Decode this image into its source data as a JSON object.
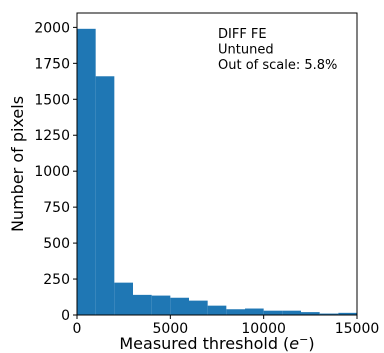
{
  "chart_data": {
    "type": "bar",
    "xlabel": "Measured threshold (",
    "xlabel_math": "e",
    "xlabel_sup": "−",
    "xlabel_close": ")",
    "ylabel": "Number of pixels",
    "xlim": [
      0,
      15000
    ],
    "ylim": [
      0,
      2100
    ],
    "x_ticks": [
      0,
      5000,
      10000,
      15000
    ],
    "x_tick_labels": [
      "0",
      "5000",
      "10000",
      "15000"
    ],
    "y_ticks": [
      0,
      250,
      500,
      750,
      1000,
      1250,
      1500,
      1750,
      2000
    ],
    "y_tick_labels": [
      "0",
      "250",
      "500",
      "750",
      "1000",
      "1250",
      "1500",
      "1750",
      "2000"
    ],
    "bin_edges": [
      0,
      1000,
      2000,
      3000,
      4000,
      5000,
      6000,
      7000,
      8000,
      9000,
      10000,
      11000,
      12000,
      13000,
      14000,
      15000
    ],
    "values": [
      1990,
      1660,
      225,
      140,
      135,
      120,
      100,
      65,
      40,
      45,
      30,
      30,
      20,
      10,
      15
    ],
    "bar_color": "#1f77b4",
    "grid": false,
    "annotations": [
      "DIFF FE",
      "Untuned",
      "Out of scale: 5.8%"
    ],
    "annotation_placement": "top-right"
  }
}
